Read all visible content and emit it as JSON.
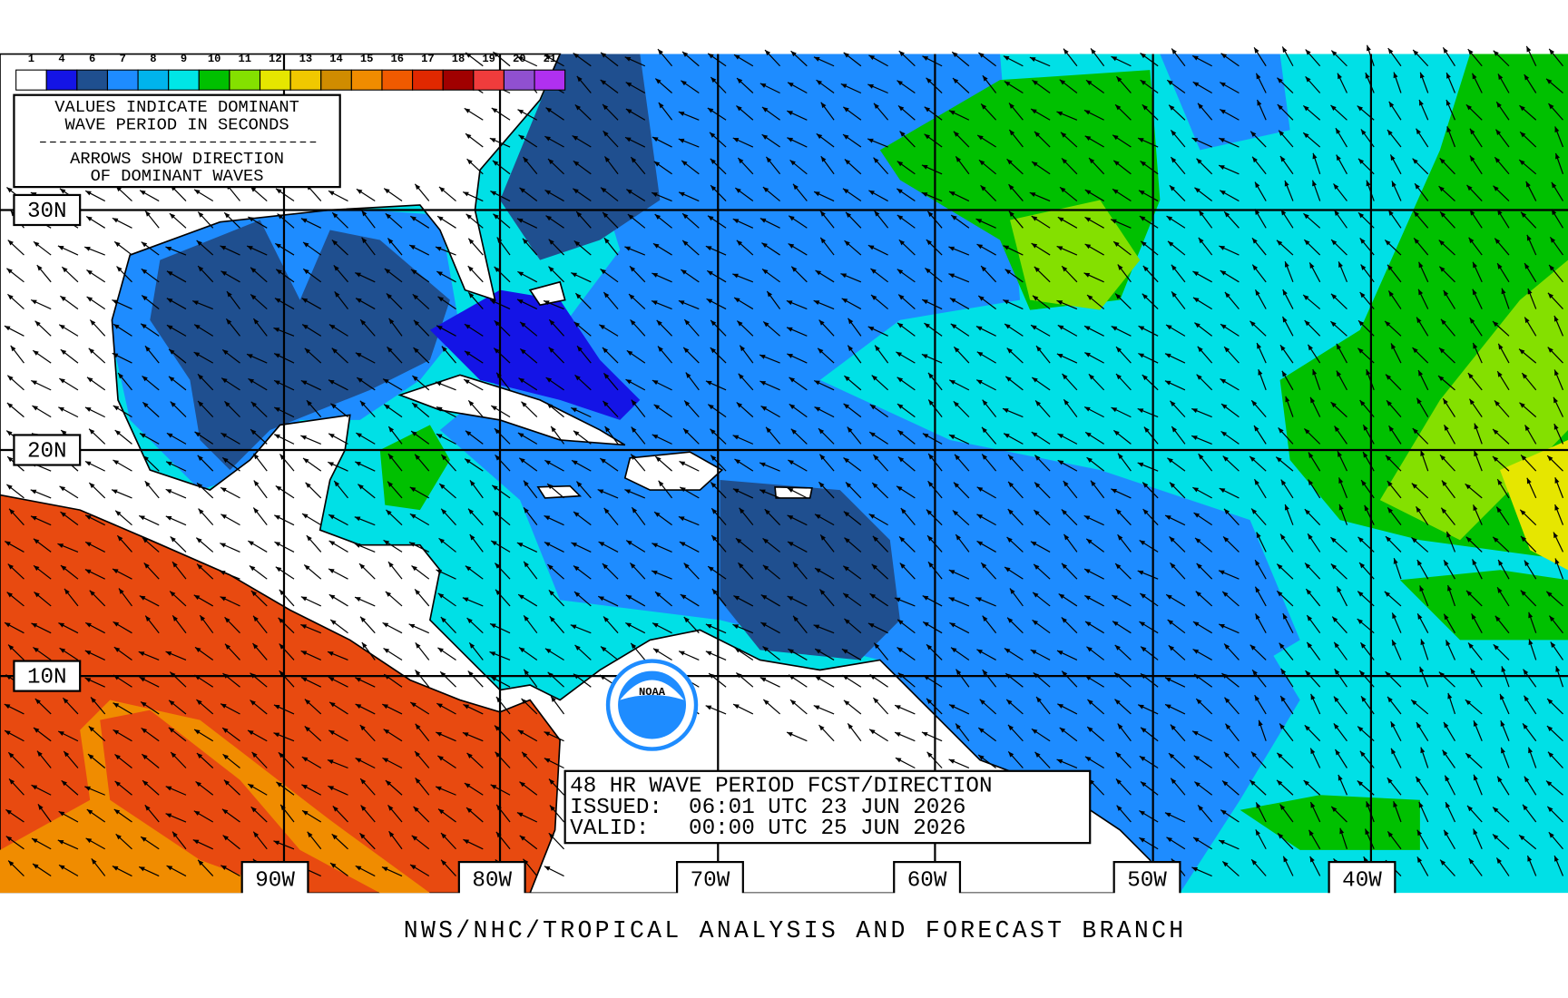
{
  "legend": {
    "labels": [
      "1",
      "4",
      "6",
      "7",
      "8",
      "9",
      "10",
      "11",
      "12",
      "13",
      "14",
      "15",
      "16",
      "17",
      "18",
      "19",
      "20",
      "21"
    ],
    "colors": [
      "#ffffff",
      "#1414e6",
      "#1f4f8f",
      "#1e8cff",
      "#00b4ec",
      "#00e6e6",
      "#00c000",
      "#84e000",
      "#e6e600",
      "#f0c800",
      "#d08c00",
      "#f08c00",
      "#f05a00",
      "#e02800",
      "#a00000",
      "#f03c3c",
      "#9050d0",
      "#b030f0"
    ]
  },
  "info_box": {
    "lines": [
      "VALUES INDICATE DOMINANT",
      "WAVE PERIOD IN SECONDS",
      "ARROWS SHOW DIRECTION",
      "OF DOMINANT WAVES"
    ]
  },
  "latitude_labels": [
    "30N",
    "20N",
    "10N"
  ],
  "longitude_labels": [
    "90W",
    "80W",
    "70W",
    "60W",
    "50W",
    "40W"
  ],
  "forecast_box": {
    "lines": [
      "48 HR WAVE PERIOD FCST/DIRECTION",
      "ISSUED:  06:01 UTC 23 JUN 2026",
      "VALID:   00:00 UTC 25 JUN 2026"
    ]
  },
  "logo": "NOAA",
  "footer": "NWS/NHC/TROPICAL ANALYSIS AND FORECAST BRANCH"
}
